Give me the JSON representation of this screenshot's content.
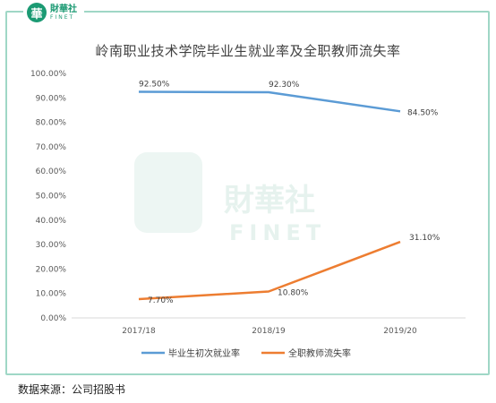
{
  "header": {
    "logo_cn": "財華社",
    "logo_en": "FINET",
    "logo_char": "華"
  },
  "footer": {
    "source": "数据来源：公司招股书"
  },
  "colors": {
    "employment": "#5b9bd5",
    "turnover": "#ed7d31",
    "frame": "#9fd7c6",
    "brand": "#1b9a73"
  },
  "watermark": {
    "cn": "財華社",
    "en": "FINET"
  },
  "chart_data": {
    "type": "line",
    "title": "岭南职业技术学院毕业生就业率及全职教师流失率",
    "categories": [
      "2017/18",
      "2018/19",
      "2019/20"
    ],
    "ylim": [
      0,
      100
    ],
    "yticks": [
      "0.00%",
      "10.00%",
      "20.00%",
      "30.00%",
      "40.00%",
      "50.00%",
      "60.00%",
      "70.00%",
      "80.00%",
      "90.00%",
      "100.00%"
    ],
    "legend_position": "bottom",
    "grid": false,
    "series": [
      {
        "name": "毕业生初次就业率",
        "values": [
          92.5,
          92.3,
          84.5
        ],
        "labels": [
          "92.50%",
          "92.30%",
          "84.50%"
        ],
        "color": "#5b9bd5"
      },
      {
        "name": "全职教师流失率",
        "values": [
          7.7,
          10.8,
          31.1
        ],
        "labels": [
          "7.70%",
          "10.80%",
          "31.10%"
        ],
        "color": "#ed7d31"
      }
    ]
  }
}
